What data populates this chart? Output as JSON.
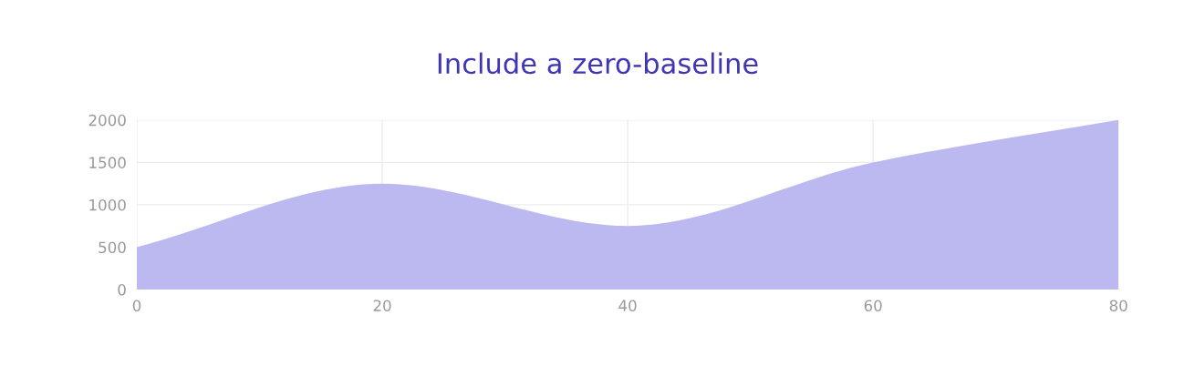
{
  "chart_data": {
    "type": "area",
    "title": "Include a zero-baseline",
    "x": [
      0,
      20,
      40,
      60,
      80
    ],
    "series": [
      {
        "color": "#b8b5f0",
        "values": [
          500,
          1250,
          750,
          1500,
          2000
        ]
      }
    ],
    "xlim": [
      0,
      80
    ],
    "xticks": [
      0,
      20,
      40,
      60,
      80
    ],
    "ylim": [
      0,
      2000
    ],
    "yticks": [
      0,
      500,
      1000,
      1500,
      2000
    ],
    "grid": true,
    "legend": false
  }
}
